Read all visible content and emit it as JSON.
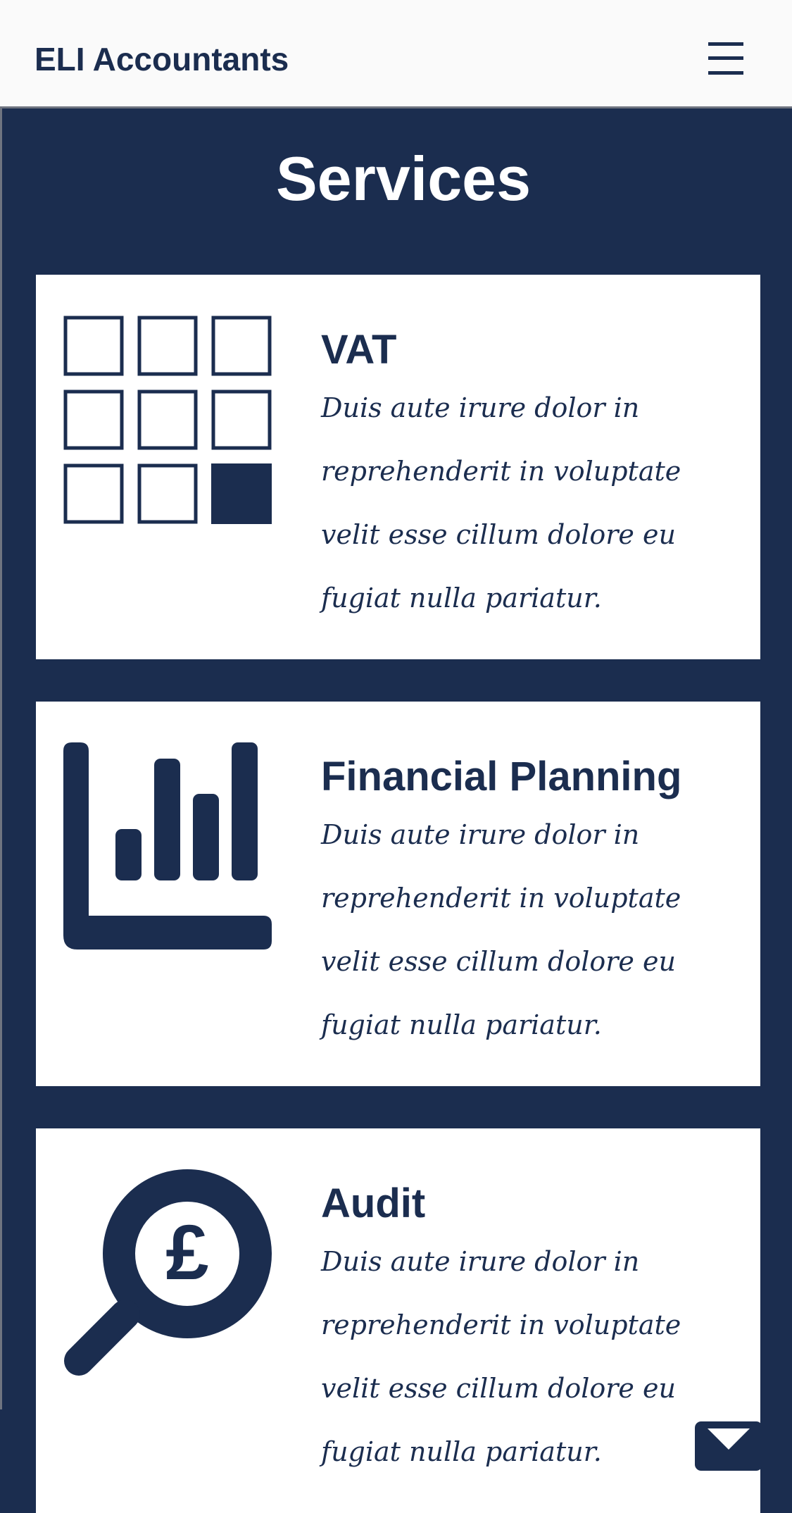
{
  "header": {
    "brand": "ELI Accountants",
    "menu_icon": "hamburger-menu-icon"
  },
  "services": {
    "title": "Services",
    "items": [
      {
        "title": "VAT",
        "description": "Duis aute irure dolor in reprehenderit in voluptate velit esse cillum dolore eu fugiat nulla pariatur.",
        "icon": "grid-icon"
      },
      {
        "title": "Financial Planning",
        "description": "Duis aute irure dolor in reprehenderit in voluptate velit esse cillum dolore eu fugiat nulla pariatur.",
        "icon": "bar-chart-icon"
      },
      {
        "title": "Audit",
        "description": "Duis aute irure dolor in reprehenderit in voluptate velit esse cillum dolore eu fugiat nulla pariatur.",
        "icon": "magnifier-pound-icon"
      }
    ]
  },
  "contact": {
    "icon": "envelope-icon"
  },
  "colors": {
    "primary": "#1b2d4f",
    "background": "#fafafa",
    "card": "#ffffff"
  }
}
